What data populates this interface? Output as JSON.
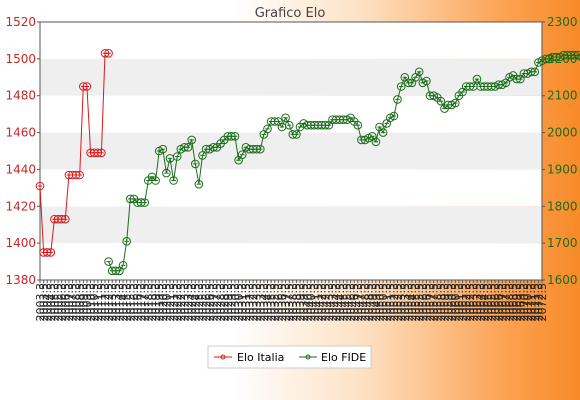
{
  "chart_data": {
    "type": "line",
    "title": "Grafico Elo",
    "y_left": {
      "ylim": [
        1380,
        1520
      ],
      "ticks": [
        1380,
        1400,
        1420,
        1440,
        1460,
        1480,
        1500,
        1520
      ],
      "color": "#c62828"
    },
    "y_right": {
      "ylim": [
        1600,
        2300
      ],
      "ticks": [
        1600,
        1700,
        1800,
        1900,
        2000,
        2100,
        2200,
        2300
      ],
      "color": "#1b6d1b"
    },
    "x_tick_labels": [
      "2003.3",
      "2003.5",
      "2004.3",
      "2004.5",
      "2005.3",
      "2005.5",
      "2006.3",
      "2006.5",
      "2007.3",
      "2007.5",
      "2008.3",
      "2008.5",
      "2009.3",
      "2009.5",
      "2010.3",
      "2010.5",
      "2011.3",
      "2011.5",
      "2012.3",
      "2012.5",
      "2013.3",
      "2013.5",
      "2014.3",
      "2014.5",
      "2015.3",
      "2015.5",
      "2016.3",
      "2016.5",
      "2017.3",
      "2017.5",
      "2018.3",
      "2018.5",
      "2019.3",
      "2019.5",
      "2020.3",
      "2020.5",
      "2021.3",
      "2021.5",
      "2022.3",
      "2022.5",
      "2023.3",
      "2023.5",
      "2024.3",
      "2024.5",
      "2025.3",
      "2025.5",
      "2026.3",
      "2026.5",
      "2027.3",
      "2027.5",
      "2028.3",
      "2028.5",
      "2029.3",
      "2029.5",
      "2030.3",
      "2030.5",
      "2031.3",
      "2031.5",
      "2032.3",
      "2032.5",
      "2033.3",
      "2033.5",
      "2034.3",
      "2034.5",
      "2035.3",
      "2035.5",
      "2036.3",
      "2036.5",
      "2037.3",
      "2037.5",
      "2038.3",
      "2038.5",
      "2039.3",
      "2039.5",
      "2040.3",
      "2040.5",
      "2041.3",
      "2041.5",
      "2042.3",
      "2042.5",
      "2043.3",
      "2043.5",
      "2044.3",
      "2044.5",
      "2045.3",
      "2045.5",
      "2046.3",
      "2046.5",
      "2047.3",
      "2047.5",
      "2048.3",
      "2048.5",
      "2049.3",
      "2049.5",
      "2050.3",
      "2050.5",
      "2051.3",
      "2051.5",
      "2052.3",
      "2052.5",
      "2053.3",
      "2053.5",
      "2054.3",
      "2054.5",
      "2055.3",
      "2055.5",
      "2056.3",
      "2056.5",
      "2057.3",
      "2057.5",
      "2058.3",
      "2058.5",
      "2059.3",
      "2059.5",
      "2060.3",
      "2060.5",
      "2061.3",
      "2061.5",
      "2062.3",
      "2062.5",
      "2063.3",
      "2063.5",
      "2064.3",
      "2064.5",
      "2065.3",
      "2065.5",
      "2066.3",
      "2066.5",
      "2067.3",
      "2067.5",
      "2068.3",
      "2068.5",
      "2069.3",
      "2069.5",
      "2070.3",
      "2070.5",
      "2071.3",
      "2071.5",
      "2072.3",
      "2072.5"
    ],
    "series": [
      {
        "name": "Elo Italia",
        "axis": "left",
        "color": "#d81b1b",
        "values": [
          1431,
          1395,
          1395,
          1395,
          1413,
          1413,
          1413,
          1413,
          1437,
          1437,
          1437,
          1437,
          1485,
          1485,
          1449,
          1449,
          1449,
          1449,
          1503,
          1503
        ]
      },
      {
        "name": "Elo FIDE",
        "axis": "right",
        "offset": 19,
        "color": "#1b6d1b",
        "values": [
          1650,
          1625,
          1625,
          1625,
          1640,
          1705,
          1820,
          1820,
          1810,
          1810,
          1810,
          1870,
          1880,
          1870,
          1950,
          1955,
          1890,
          1930,
          1870,
          1935,
          1955,
          1960,
          1960,
          1980,
          1915,
          1860,
          1938,
          1955,
          1955,
          1960,
          1960,
          1970,
          1980,
          1990,
          1990,
          1990,
          1925,
          1940,
          1960,
          1955,
          1955,
          1955,
          1955,
          1995,
          2010,
          2030,
          2030,
          2030,
          2015,
          2040,
          2020,
          1995,
          1995,
          2015,
          2025,
          2020,
          2020,
          2020,
          2020,
          2020,
          2020,
          2020,
          2035,
          2035,
          2035,
          2035,
          2035,
          2040,
          2030,
          2020,
          1980,
          1980,
          1985,
          1990,
          1975,
          2015,
          2000,
          2025,
          2040,
          2045,
          2090,
          2125,
          2150,
          2135,
          2135,
          2150,
          2165,
          2135,
          2140,
          2100,
          2100,
          2095,
          2085,
          2065,
          2075,
          2075,
          2080,
          2100,
          2110,
          2125,
          2125,
          2125,
          2145,
          2125,
          2125,
          2125,
          2125,
          2125,
          2130,
          2130,
          2135,
          2150,
          2155,
          2145,
          2145,
          2160,
          2160,
          2165,
          2165,
          2190,
          2195,
          2200,
          2200,
          2205,
          2205,
          2205,
          2210,
          2210,
          2210,
          2210,
          2210,
          2205,
          2200,
          2200,
          2200,
          2200,
          2210,
          2210,
          2210
        ]
      }
    ],
    "legend": {
      "placement": "bottom-center"
    },
    "grid": true
  }
}
